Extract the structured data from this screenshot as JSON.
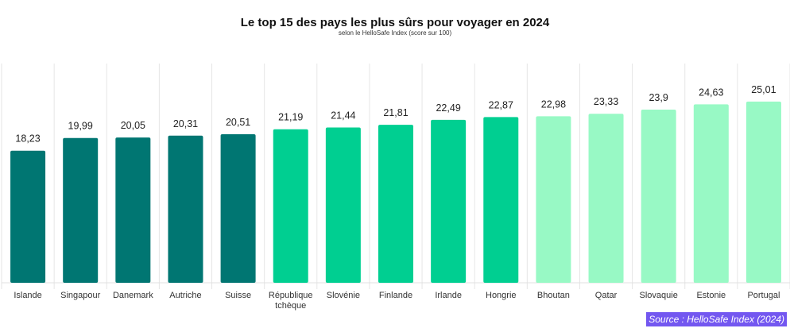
{
  "chart_data": {
    "type": "bar",
    "title": "Le top 15 des pays les plus sûrs pour voyager en 2024",
    "subtitle": "selon le HelloSafe Index (score sur 100)",
    "categories": [
      "Islande",
      "Singapour",
      "Danemark",
      "Autriche",
      "Suisse",
      "République tchèque",
      "Slovénie",
      "Finlande",
      "Irlande",
      "Hongrie",
      "Bhoutan",
      "Qatar",
      "Slovaquie",
      "Estonie",
      "Portugal"
    ],
    "category_lines": [
      [
        "Islande"
      ],
      [
        "Singapour"
      ],
      [
        "Danemark"
      ],
      [
        "Autriche"
      ],
      [
        "Suisse"
      ],
      [
        "République",
        "tchèque"
      ],
      [
        "Slovénie"
      ],
      [
        "Finlande"
      ],
      [
        "Irlande"
      ],
      [
        "Hongrie"
      ],
      [
        "Bhoutan"
      ],
      [
        "Qatar"
      ],
      [
        "Slovaquie"
      ],
      [
        "Estonie"
      ],
      [
        "Portugal"
      ]
    ],
    "values": [
      18.23,
      19.99,
      20.05,
      20.31,
      20.51,
      21.19,
      21.44,
      21.81,
      22.49,
      22.87,
      22.98,
      23.33,
      23.9,
      24.63,
      25.01
    ],
    "labels": [
      "18,23",
      "19,99",
      "20,05",
      "20,31",
      "20,51",
      "21,19",
      "21,44",
      "21,81",
      "22,49",
      "22,87",
      "22,98",
      "23,33",
      "23,9",
      "24,63",
      "25,01"
    ],
    "color_groups": [
      0,
      0,
      0,
      0,
      0,
      1,
      1,
      1,
      1,
      1,
      2,
      2,
      2,
      2,
      2
    ],
    "colors": [
      "#007672",
      "#00cf91",
      "#98f9c5"
    ],
    "xlabel": "",
    "ylabel": "",
    "ylim": [
      0,
      30
    ],
    "grid": "vertical",
    "source": "Source : HelloSafe Index (2024)"
  }
}
